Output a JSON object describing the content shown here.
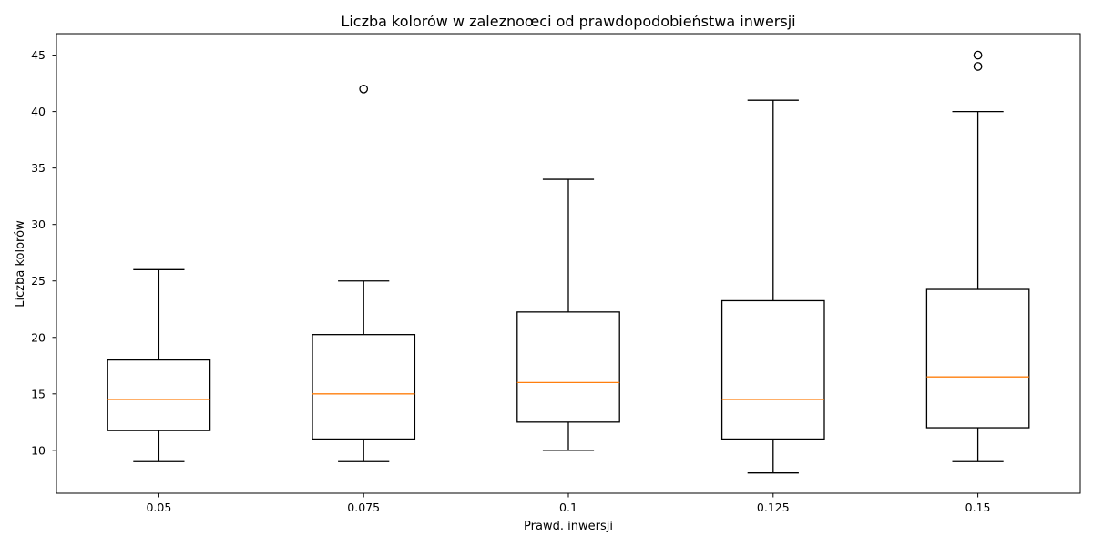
{
  "chart_data": {
    "type": "boxplot",
    "title": "Liczba kolorów w zaleznoœci od prawdopodobieństwa inwersji",
    "xlabel": "Prawd. inwersji",
    "ylabel": "Liczba kolorów",
    "categories": [
      "0.05",
      "0.075",
      "0.1",
      "0.125",
      "0.15"
    ],
    "ylim": [
      6.2,
      46.9
    ],
    "yticks": [
      10,
      15,
      20,
      25,
      30,
      35,
      40,
      45
    ],
    "grid": false,
    "boxes": [
      {
        "label": "0.05",
        "whisker_low": 9,
        "q1": 11.75,
        "median": 14.5,
        "q3": 18.0,
        "whisker_high": 26,
        "outliers": []
      },
      {
        "label": "0.075",
        "whisker_low": 9,
        "q1": 11.0,
        "median": 15.0,
        "q3": 20.25,
        "whisker_high": 25,
        "outliers": [
          42
        ]
      },
      {
        "label": "0.1",
        "whisker_low": 10,
        "q1": 12.5,
        "median": 16.0,
        "q3": 22.25,
        "whisker_high": 34,
        "outliers": []
      },
      {
        "label": "0.125",
        "whisker_low": 8,
        "q1": 11.0,
        "median": 14.5,
        "q3": 23.25,
        "whisker_high": 41,
        "outliers": []
      },
      {
        "label": "0.15",
        "whisker_low": 9,
        "q1": 12.0,
        "median": 16.5,
        "q3": 24.25,
        "whisker_high": 40,
        "outliers": [
          44,
          45
        ]
      }
    ],
    "colors": {
      "box": "#000000",
      "median": "#ff7f0e",
      "background": "#ffffff"
    }
  }
}
